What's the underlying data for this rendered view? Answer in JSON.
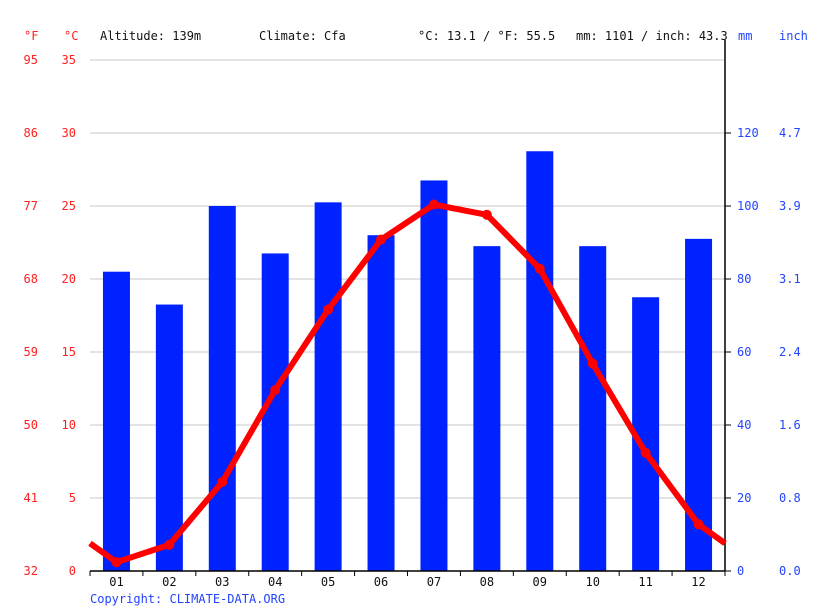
{
  "header": {
    "f_unit": "°F",
    "c_unit": "°C",
    "altitude": "Altitude: 139m",
    "climate": "Climate: Cfa",
    "temp_avg": "°C: 13.1 / °F: 55.5",
    "precip_total": "mm: 1101 / inch: 43.3",
    "mm_unit": "mm",
    "inch_unit": "inch"
  },
  "axes": {
    "fahrenheit_ticks": [
      "95",
      "86",
      "77",
      "68",
      "59",
      "50",
      "41",
      "32"
    ],
    "celsius_ticks": [
      "35",
      "30",
      "25",
      "20",
      "15",
      "10",
      "5",
      "0"
    ],
    "mm_ticks": [
      "120",
      "100",
      "80",
      "60",
      "40",
      "20",
      "0"
    ],
    "inch_ticks": [
      "4.7",
      "3.9",
      "3.1",
      "2.4",
      "1.6",
      "0.8",
      "0.0"
    ],
    "months": [
      "01",
      "02",
      "03",
      "04",
      "05",
      "06",
      "07",
      "08",
      "09",
      "10",
      "11",
      "12"
    ]
  },
  "footer": {
    "copyright": "Copyright: CLIMATE-DATA.ORG"
  },
  "colors": {
    "bar": "#0022ff",
    "line": "#ff0000",
    "grid": "#c8c8c8",
    "temp_axis_text": "#ff2020",
    "precip_axis_text": "#2244ff"
  },
  "chart_data": {
    "type": "bar+line",
    "title": "",
    "categories": [
      "01",
      "02",
      "03",
      "04",
      "05",
      "06",
      "07",
      "08",
      "09",
      "10",
      "11",
      "12"
    ],
    "series": [
      {
        "name": "Precipitation (mm)",
        "type": "bar",
        "axis": "right",
        "values": [
          82,
          73,
          100,
          87,
          101,
          92,
          107,
          89,
          115,
          89,
          75,
          91
        ]
      },
      {
        "name": "Temperature (°C)",
        "type": "line",
        "axis": "left",
        "values": [
          0.6,
          1.8,
          6.1,
          12.4,
          17.9,
          22.7,
          25.1,
          24.4,
          20.7,
          14.2,
          8.1,
          3.2
        ]
      }
    ],
    "left_axis": {
      "label": "°C / °F",
      "ylim": [
        0,
        35
      ],
      "ticks_c": [
        0,
        5,
        10,
        15,
        20,
        25,
        30,
        35
      ],
      "ticks_f": [
        32,
        41,
        50,
        59,
        68,
        77,
        86,
        95
      ]
    },
    "right_axis": {
      "label": "mm / inch",
      "ylim": [
        0,
        140
      ],
      "ticks_mm": [
        0,
        20,
        40,
        60,
        80,
        100,
        120
      ],
      "ticks_inch": [
        0.0,
        0.8,
        1.6,
        2.4,
        3.1,
        3.9,
        4.7
      ]
    },
    "annotations": [
      "Altitude: 139m",
      "Climate: Cfa",
      "°C: 13.1 / °F: 55.5",
      "mm: 1101 / inch: 43.3"
    ],
    "grid": true,
    "legend": "none"
  }
}
